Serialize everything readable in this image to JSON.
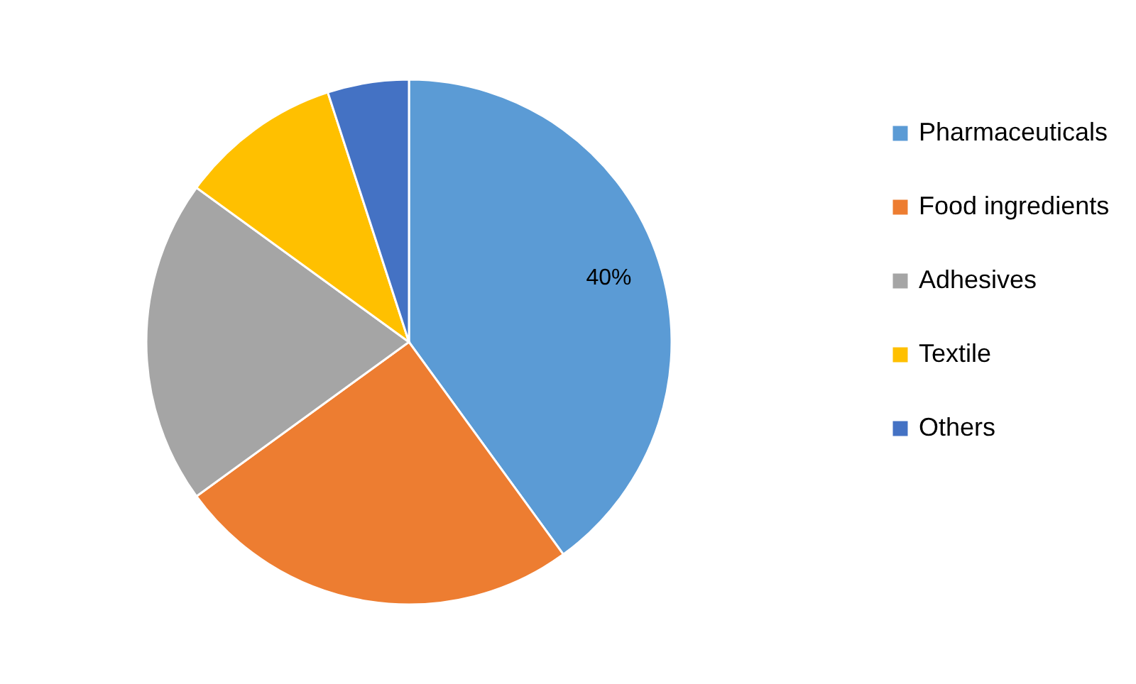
{
  "chart_data": {
    "type": "pie",
    "categories": [
      "Pharmaceuticals",
      "Food ingredients",
      "Adhesives",
      "Textile",
      "Others"
    ],
    "values": [
      40,
      25,
      20,
      10,
      5
    ],
    "colors": [
      "#5b9bd5",
      "#ed7d31",
      "#a5a5a5",
      "#ffc000",
      "#4472c4"
    ],
    "value_labels": [
      "40%",
      null,
      null,
      null,
      null
    ],
    "legend": "right"
  }
}
